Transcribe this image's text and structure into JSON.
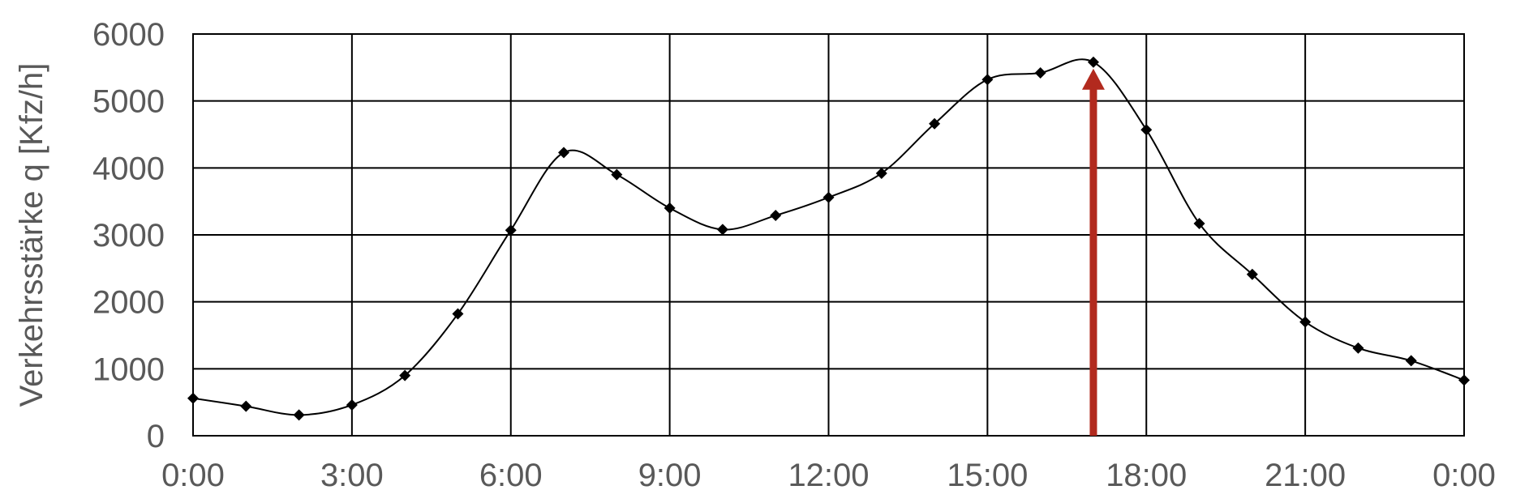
{
  "chart_data": {
    "type": "line",
    "title": "",
    "xlabel": "",
    "ylabel": "Verkehrsstärke q [Kfz/h]",
    "x_tick_labels": [
      "0:00",
      "3:00",
      "6:00",
      "9:00",
      "12:00",
      "15:00",
      "18:00",
      "21:00",
      "0:00"
    ],
    "x_tick_hours": [
      0,
      3,
      6,
      9,
      12,
      15,
      18,
      21,
      24
    ],
    "y_ticks": [
      0,
      1000,
      2000,
      3000,
      4000,
      5000,
      6000
    ],
    "xlim": [
      0,
      24
    ],
    "ylim": [
      0,
      6000
    ],
    "grid": true,
    "smooth": true,
    "series": [
      {
        "x_hours": [
          0,
          1,
          2,
          3,
          4,
          5,
          6,
          7,
          8,
          9,
          10,
          11,
          12,
          13,
          14,
          15,
          16,
          17,
          18,
          19,
          20,
          21,
          22,
          23,
          24
        ],
        "values": [
          560,
          440,
          310,
          460,
          900,
          1820,
          3070,
          4230,
          3900,
          3400,
          3080,
          3290,
          3560,
          3920,
          4660,
          5320,
          5420,
          5580,
          4570,
          3170,
          2410,
          1700,
          1310,
          1120,
          830
        ]
      }
    ],
    "annotation_arrow": {
      "x_hour": 17,
      "y_from": 0,
      "y_to": 5580,
      "color": "#B22A1E"
    }
  }
}
